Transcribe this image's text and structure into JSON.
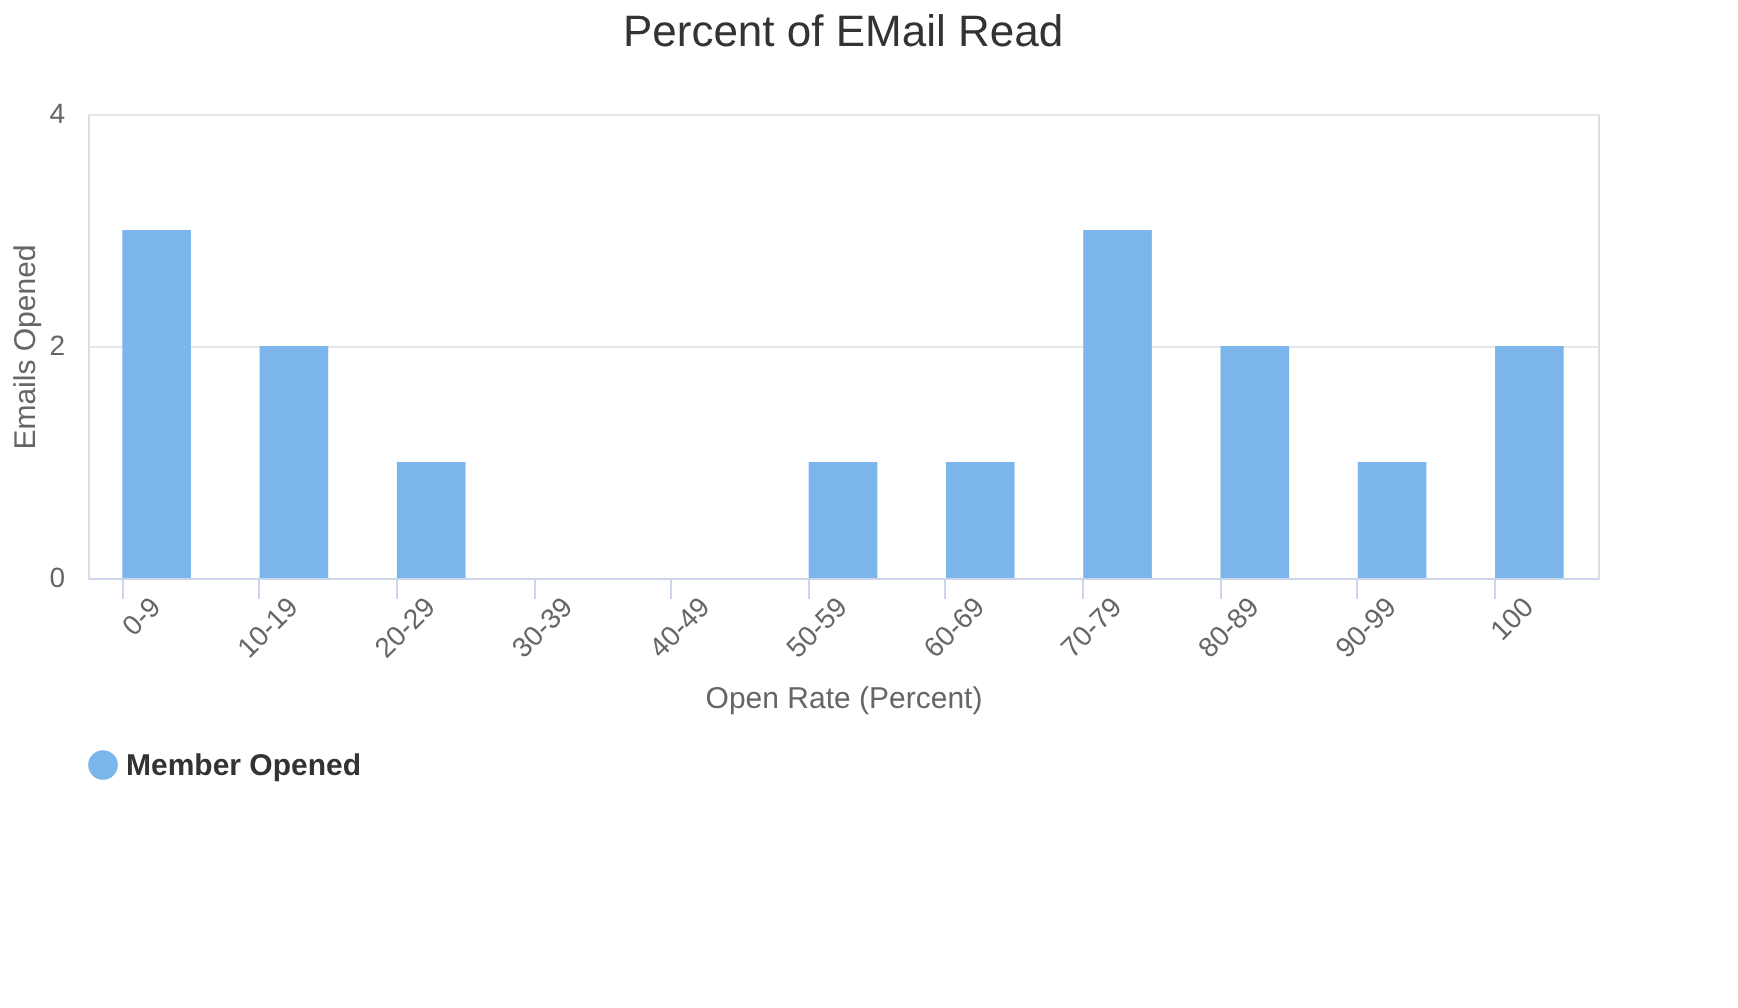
{
  "chart_data": {
    "type": "bar",
    "title": "Percent of EMail Read",
    "xlabel": "Open Rate (Percent)",
    "ylabel": "Emails Opened",
    "categories": [
      "0-9",
      "10-19",
      "20-29",
      "30-39",
      "40-49",
      "50-59",
      "60-69",
      "70-79",
      "80-89",
      "90-99",
      "100"
    ],
    "series": [
      {
        "name": "Member Opened",
        "color": "#7cb5ec",
        "values": [
          3,
          2,
          1,
          0,
          0,
          1,
          1,
          3,
          2,
          1,
          2
        ]
      }
    ],
    "ylim": [
      0,
      4
    ],
    "yticks": [
      0,
      2,
      4
    ],
    "grid": "y",
    "legend": "bottom"
  }
}
